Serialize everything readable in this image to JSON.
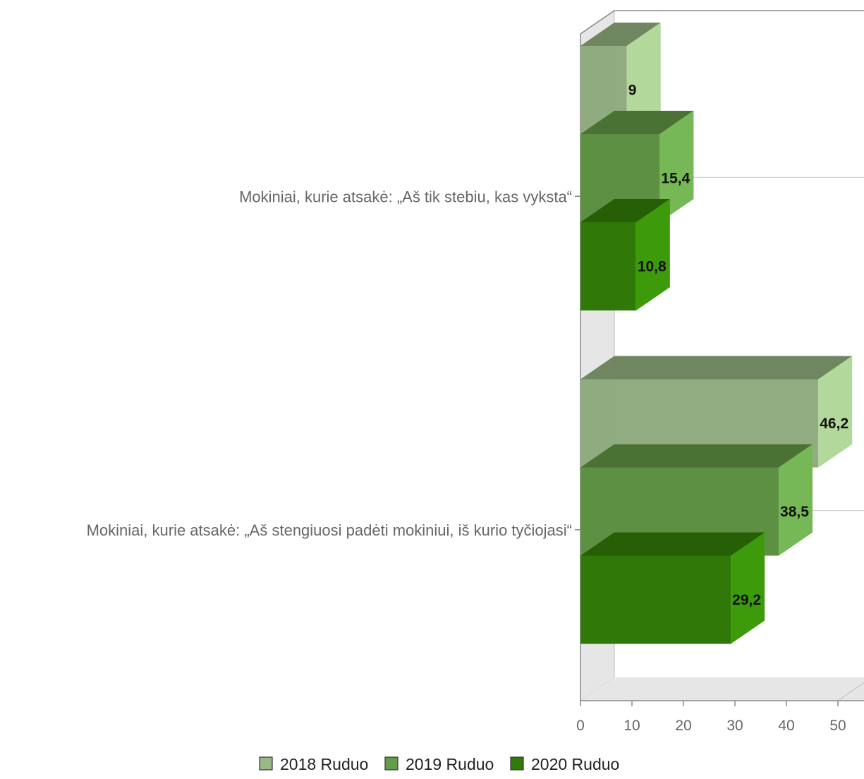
{
  "chart_data": {
    "type": "bar",
    "orientation": "horizontal",
    "style": "3d",
    "categories": [
      "Mokiniai, kurie atsakė: „Aš tik stebiu, kas vyksta“",
      "Mokiniai, kurie atsakė: „Aš stengiuosi padėti mokiniui, iš kurio tyčiojasi“"
    ],
    "series": [
      {
        "name": "2018 Ruduo",
        "values": [
          9,
          46.2
        ],
        "value_labels": [
          "9",
          "46,2"
        ],
        "color": "#b3d89c"
      },
      {
        "name": "2019 Ruduo",
        "values": [
          15.4,
          38.5
        ],
        "value_labels": [
          "15,4",
          "38,5"
        ],
        "color": "#77b856"
      },
      {
        "name": "2020 Ruduo",
        "values": [
          10.8,
          29.2
        ],
        "value_labels": [
          "10,8",
          "29,2"
        ],
        "color": "#3d9a0a"
      }
    ],
    "xlim": [
      0,
      50
    ],
    "x_ticks": [
      "0",
      "10",
      "20",
      "30",
      "40",
      "50"
    ],
    "grid": true,
    "legend_position": "bottom"
  }
}
